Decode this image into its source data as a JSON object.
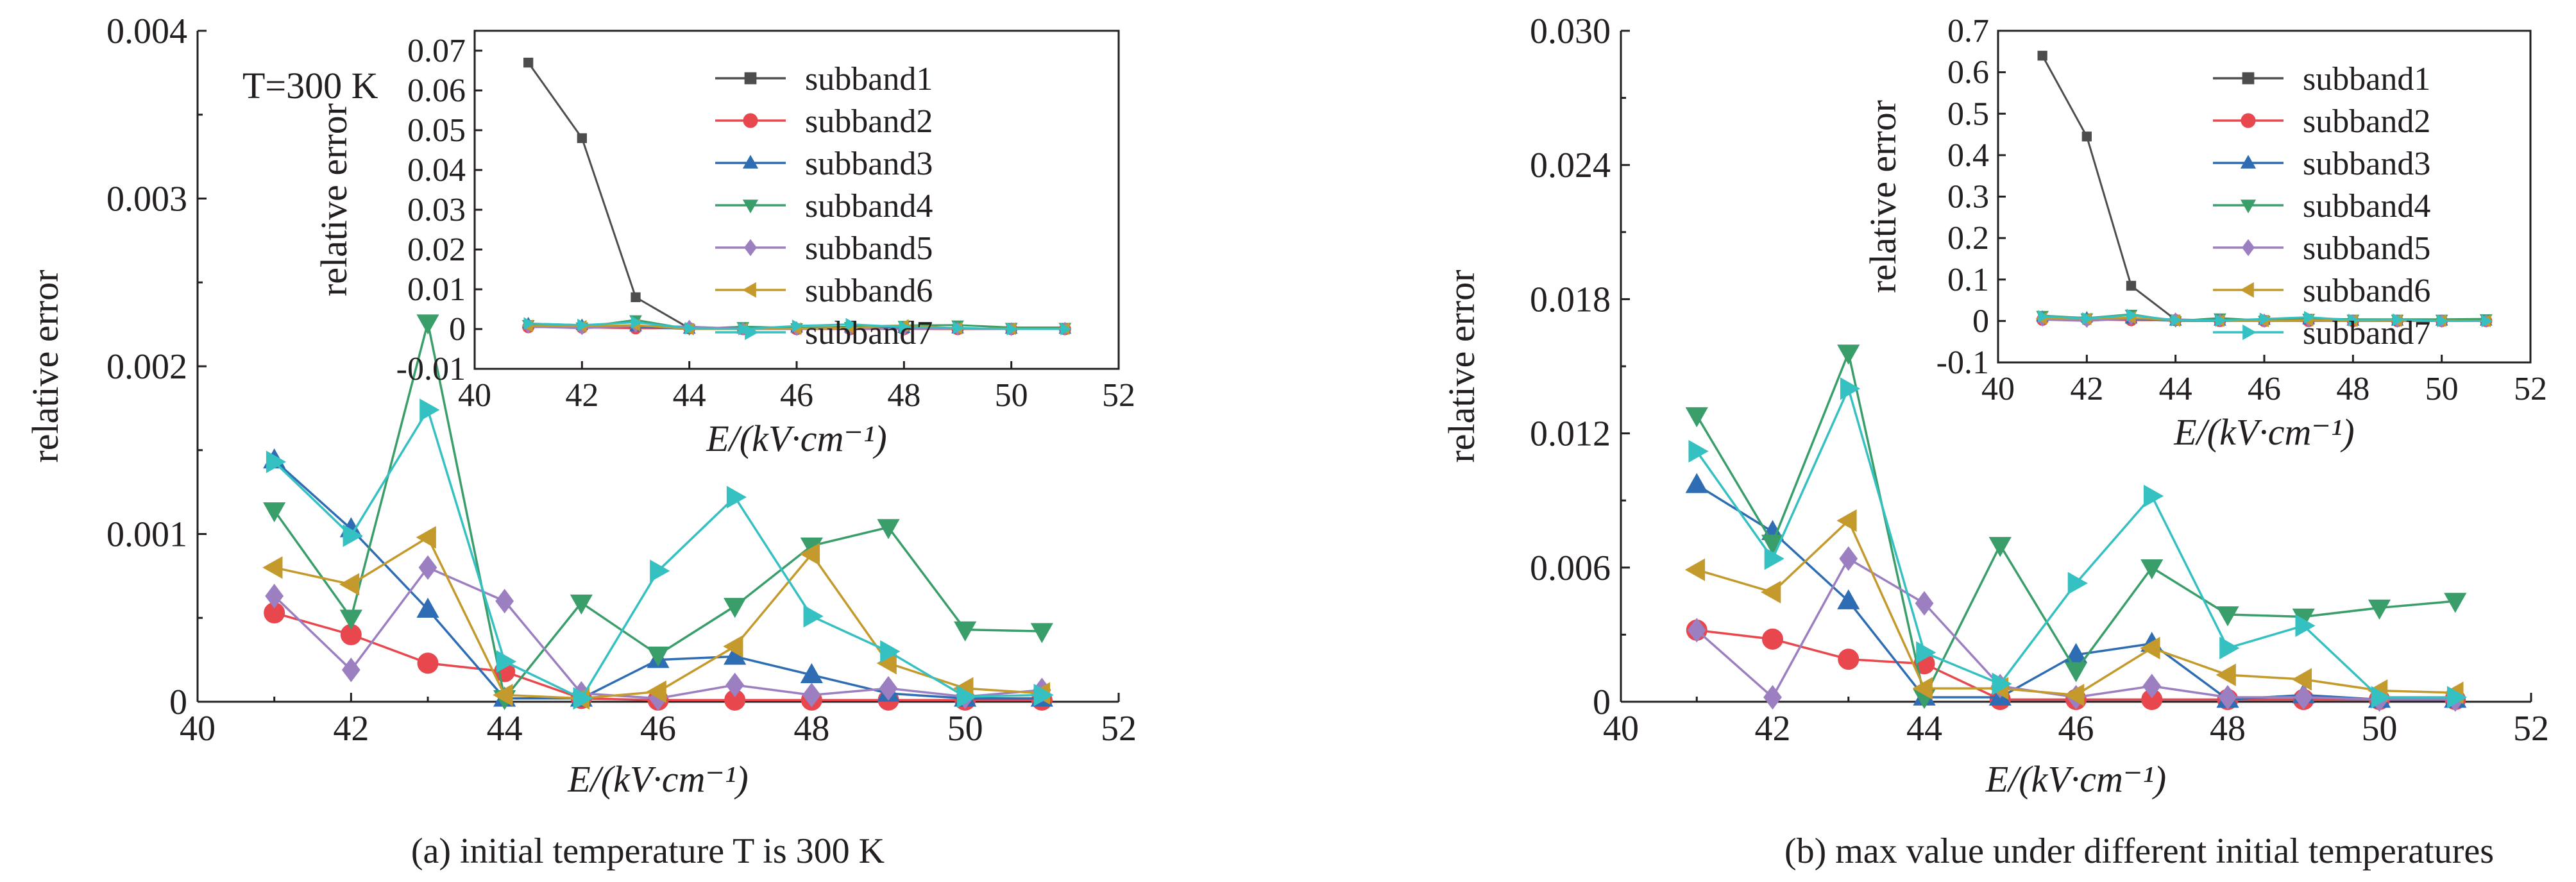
{
  "chart_data": [
    {
      "type": "line",
      "caption": "(a) initial temperature T is 300 K",
      "xlabel": "E/(kV·cm⁻¹)",
      "ylabel": "relative error",
      "annotation": "T=300 K",
      "xlim": [
        40,
        52
      ],
      "ylim": [
        0,
        0.004
      ],
      "xticks": [
        "40",
        "42",
        "44",
        "46",
        "48",
        "50",
        "52"
      ],
      "yticks": [
        "0",
        "0.001",
        "0.002",
        "0.003",
        "0.004"
      ],
      "x": [
        41,
        42,
        43,
        44,
        45,
        46,
        47,
        48,
        49,
        50,
        51
      ],
      "series": [
        {
          "name": "subband2",
          "values": [
            0.00053,
            0.0004,
            0.00023,
            0.00018,
            2e-05,
            1e-05,
            1e-05,
            1e-05,
            1e-05,
            1e-05,
            1e-05
          ]
        },
        {
          "name": "subband3",
          "values": [
            0.00144,
            0.00103,
            0.00055,
            2e-05,
            2e-05,
            0.00025,
            0.00027,
            0.00016,
            5e-05,
            2e-05,
            2e-05
          ]
        },
        {
          "name": "subband4",
          "values": [
            0.00114,
            0.0005,
            0.00226,
            2e-05,
            0.00059,
            0.00028,
            0.00057,
            0.00093,
            0.00104,
            0.00043,
            0.00042
          ]
        },
        {
          "name": "subband5",
          "values": [
            0.00063,
            0.00019,
            0.0008,
            0.0006,
            5e-05,
            2e-05,
            0.0001,
            4e-05,
            8e-05,
            3e-05,
            7e-05
          ]
        },
        {
          "name": "subband6",
          "values": [
            0.0008,
            0.0007,
            0.00098,
            4e-05,
            2e-05,
            6e-05,
            0.00033,
            0.00088,
            0.00023,
            8e-05,
            5e-05
          ]
        },
        {
          "name": "subband7",
          "values": [
            0.00143,
            0.00099,
            0.00174,
            0.00024,
            2e-05,
            0.00078,
            0.00122,
            0.00051,
            0.0003,
            3e-05,
            4e-05
          ]
        }
      ],
      "inset": {
        "ylabel": "relative error",
        "xlabel": "E/(kV·cm⁻¹)",
        "xlim": [
          40,
          52
        ],
        "ylim": [
          -0.01,
          0.075
        ],
        "xticks": [
          "40",
          "42",
          "44",
          "46",
          "48",
          "50",
          "52"
        ],
        "yticks": [
          "-0.01",
          "0",
          "0.01",
          "0.02",
          "0.03",
          "0.04",
          "0.05",
          "0.06",
          "0.07"
        ],
        "legend_position": "top-right",
        "series": [
          {
            "name": "subband1",
            "values": [
              0.067,
              0.048,
              0.008,
              0.0002,
              0.0001,
              0.0001,
              0.0001,
              0.0001,
              0.0001,
              0.0001,
              0.0001
            ]
          },
          {
            "name": "subband2",
            "values": [
              0.0005,
              0.0004,
              0.0002,
              0.0002,
              0,
              0,
              0,
              0,
              0,
              0,
              0
            ]
          },
          {
            "name": "subband3",
            "values": [
              0.0014,
              0.001,
              0.0006,
              0,
              0,
              0.0003,
              0.0003,
              0.0002,
              0.0001,
              0,
              0
            ]
          },
          {
            "name": "subband4",
            "values": [
              0.0011,
              0.0005,
              0.0023,
              0,
              0.0006,
              0.0003,
              0.0006,
              0.0009,
              0.001,
              0.0004,
              0.0004
            ]
          },
          {
            "name": "subband5",
            "values": [
              0.0006,
              0.0002,
              0.0008,
              0.0006,
              0.0001,
              0,
              0.0001,
              0,
              0.0001,
              0,
              0.0001
            ]
          },
          {
            "name": "subband6",
            "values": [
              0.0008,
              0.0007,
              0.001,
              0,
              0,
              0.0001,
              0.0003,
              0.0009,
              0.0002,
              0.0001,
              0.0001
            ]
          },
          {
            "name": "subband7",
            "values": [
              0.0014,
              0.001,
              0.0017,
              0.0002,
              0,
              0.0008,
              0.0012,
              0.0005,
              0.0003,
              0,
              0
            ]
          }
        ]
      }
    },
    {
      "type": "line",
      "caption": "(b) max value under different initial temperatures",
      "xlabel": "E/(kV·cm⁻¹)",
      "ylabel": "relative error",
      "xlim": [
        40,
        52
      ],
      "ylim": [
        0,
        0.03
      ],
      "xticks": [
        "40",
        "42",
        "44",
        "46",
        "48",
        "50",
        "52"
      ],
      "yticks": [
        "0",
        "0.006",
        "0.012",
        "0.018",
        "0.024",
        "0.030"
      ],
      "x": [
        41,
        42,
        43,
        44,
        45,
        46,
        47,
        48,
        49,
        50,
        51
      ],
      "series": [
        {
          "name": "subband2",
          "values": [
            0.0032,
            0.0028,
            0.0019,
            0.0017,
            0.0001,
            0.0001,
            0.0001,
            0.0001,
            0.0001,
            0.0001,
            0.0001
          ]
        },
        {
          "name": "subband3",
          "values": [
            0.0097,
            0.0076,
            0.0045,
            0.0002,
            0.0002,
            0.0021,
            0.0026,
            0.0001,
            0.0003,
            0.0001,
            0.0001
          ]
        },
        {
          "name": "subband4",
          "values": [
            0.0128,
            0.0071,
            0.0156,
            0.0002,
            0.007,
            0.0014,
            0.006,
            0.0039,
            0.0038,
            0.0042,
            0.0045
          ]
        },
        {
          "name": "subband5",
          "values": [
            0.0032,
            0.0002,
            0.0064,
            0.0044,
            0.0007,
            0.0002,
            0.0007,
            0.0002,
            0.0002,
            0.0001,
            0.0001
          ]
        },
        {
          "name": "subband6",
          "values": [
            0.0059,
            0.0049,
            0.0081,
            0.0006,
            0.0006,
            0.0003,
            0.0024,
            0.0012,
            0.001,
            0.0005,
            0.0004
          ]
        },
        {
          "name": "subband7",
          "values": [
            0.0112,
            0.0064,
            0.014,
            0.0022,
            0.0008,
            0.0053,
            0.0092,
            0.0024,
            0.0034,
            0.0002,
            0.0002
          ]
        }
      ],
      "inset": {
        "ylabel": "relative error",
        "xlabel": "E/(kV·cm⁻¹)",
        "xlim": [
          40,
          52
        ],
        "ylim": [
          -0.1,
          0.7
        ],
        "xticks": [
          "40",
          "42",
          "44",
          "46",
          "48",
          "50",
          "52"
        ],
        "yticks": [
          "-0.1",
          "0",
          "0.1",
          "0.2",
          "0.3",
          "0.4",
          "0.5",
          "0.6",
          "0.7"
        ],
        "legend_position": "top-right",
        "series": [
          {
            "name": "subband1",
            "values": [
              0.64,
              0.445,
              0.085,
              0.003,
              0.002,
              0.002,
              0.002,
              0.002,
              0.002,
              0.002,
              0.002
            ]
          },
          {
            "name": "subband2",
            "values": [
              0.003,
              0.003,
              0.002,
              0.002,
              0,
              0,
              0,
              0,
              0,
              0,
              0
            ]
          },
          {
            "name": "subband3",
            "values": [
              0.01,
              0.008,
              0.005,
              0,
              0,
              0.002,
              0.003,
              0,
              0,
              0,
              0
            ]
          },
          {
            "name": "subband4",
            "values": [
              0.013,
              0.007,
              0.016,
              0,
              0.007,
              0.001,
              0.006,
              0.004,
              0.004,
              0.004,
              0.005
            ]
          },
          {
            "name": "subband5",
            "values": [
              0.003,
              0,
              0.006,
              0.004,
              0.001,
              0,
              0.001,
              0,
              0,
              0,
              0
            ]
          },
          {
            "name": "subband6",
            "values": [
              0.006,
              0.005,
              0.008,
              0.001,
              0.001,
              0,
              0.002,
              0.001,
              0.001,
              0.001,
              0
            ]
          },
          {
            "name": "subband7",
            "values": [
              0.011,
              0.006,
              0.014,
              0.002,
              0.001,
              0.005,
              0.009,
              0.002,
              0.003,
              0,
              0
            ]
          }
        ]
      }
    }
  ],
  "series_styles": {
    "subband1": {
      "color": "#4d4d4d",
      "marker": "square"
    },
    "subband2": {
      "color": "#e8474e",
      "marker": "circle"
    },
    "subband3": {
      "color": "#2e6db3",
      "marker": "triangle-up"
    },
    "subband4": {
      "color": "#3a9e6a",
      "marker": "triangle-down"
    },
    "subband5": {
      "color": "#9c7fc1",
      "marker": "diamond"
    },
    "subband6": {
      "color": "#c49a2c",
      "marker": "triangle-left"
    },
    "subband7": {
      "color": "#35c0c2",
      "marker": "triangle-right"
    }
  }
}
